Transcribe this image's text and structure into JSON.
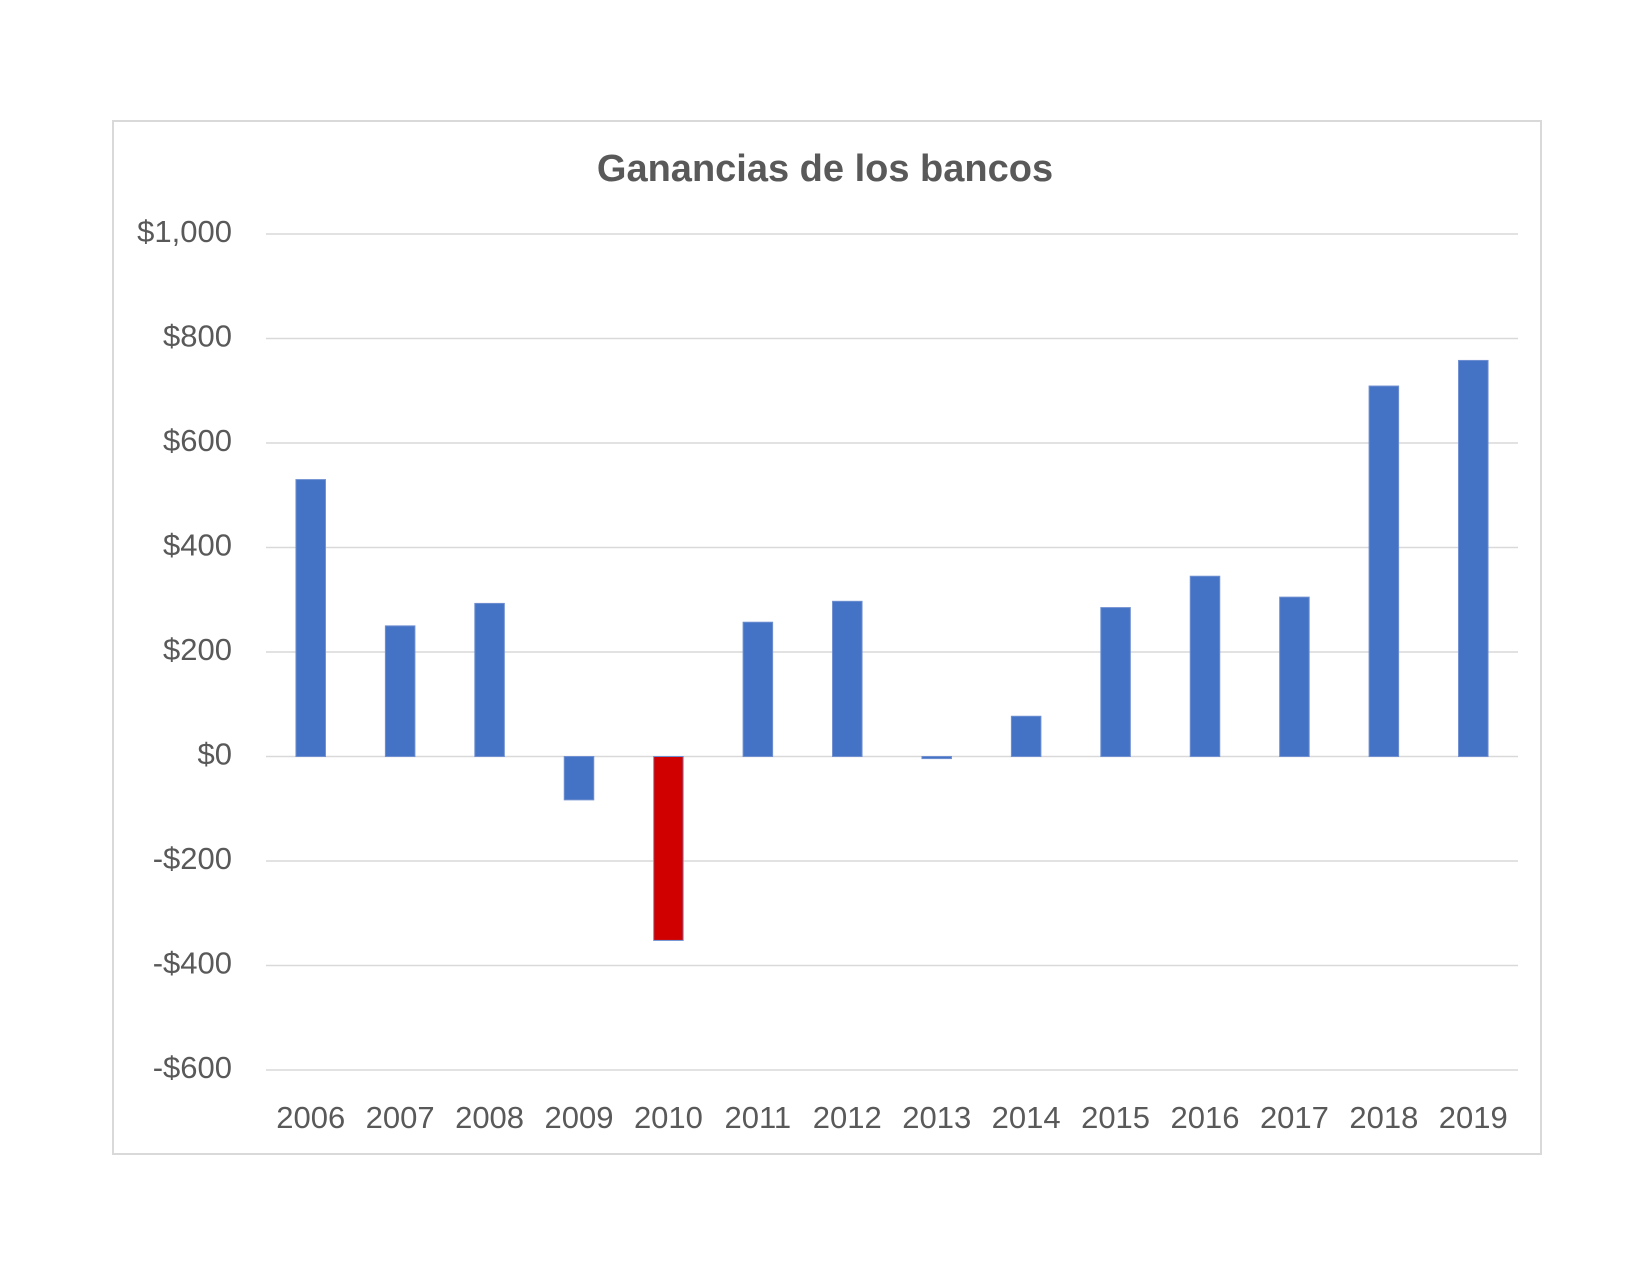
{
  "chart_data": {
    "type": "bar",
    "title": "Ganancias de los bancos",
    "categories": [
      "2006",
      "2007",
      "2008",
      "2009",
      "2010",
      "2011",
      "2012",
      "2013",
      "2014",
      "2015",
      "2016",
      "2017",
      "2018",
      "2019"
    ],
    "values": [
      530,
      250,
      293,
      -83,
      -352,
      257,
      297,
      -4,
      77,
      285,
      345,
      305,
      709,
      758
    ],
    "colors": [
      "#4472c4",
      "#4472c4",
      "#4472c4",
      "#4472c4",
      "#d00000",
      "#4472c4",
      "#4472c4",
      "#4472c4",
      "#4472c4",
      "#4472c4",
      "#4472c4",
      "#4472c4",
      "#4472c4",
      "#4472c4"
    ],
    "ylim": [
      -600,
      1000
    ],
    "yticks": [
      {
        "value": -600,
        "label": "-$600"
      },
      {
        "value": -400,
        "label": "-$400"
      },
      {
        "value": -200,
        "label": "-$200"
      },
      {
        "value": 0,
        "label": "$0"
      },
      {
        "value": 200,
        "label": "$200"
      },
      {
        "value": 400,
        "label": "$400"
      },
      {
        "value": 600,
        "label": "$600"
      },
      {
        "value": 800,
        "label": "$800"
      },
      {
        "value": 1000,
        "label": "$1,000"
      }
    ],
    "grid": true
  }
}
